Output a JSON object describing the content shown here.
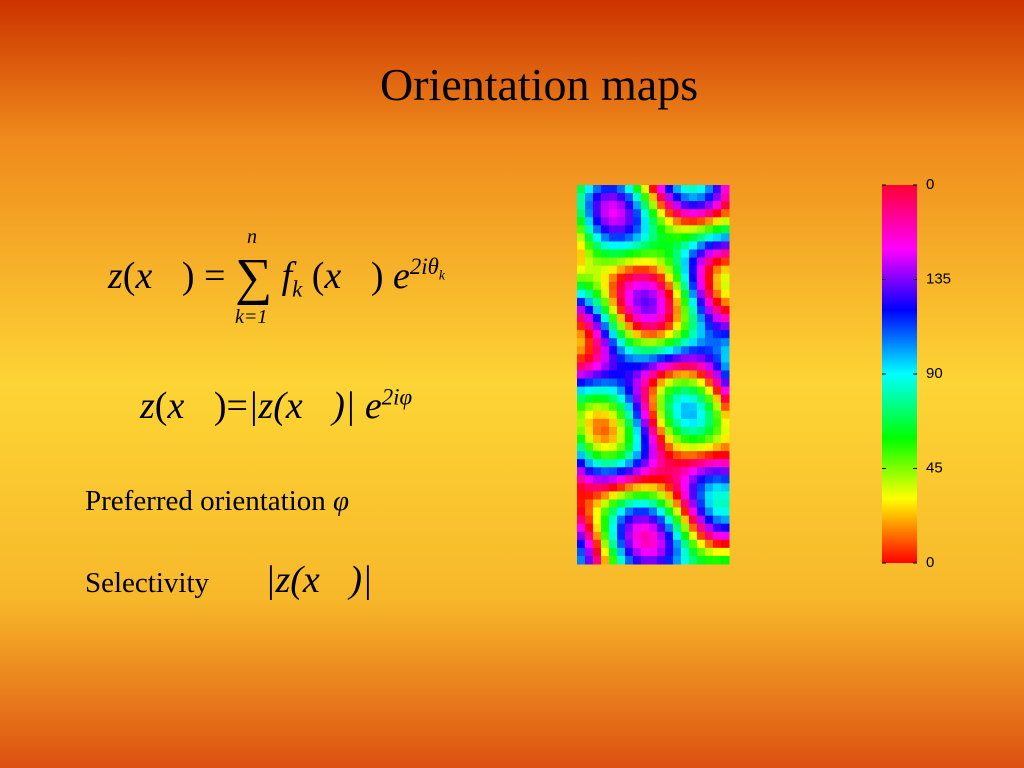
{
  "title": "Orientation maps",
  "equation1": {
    "lhs": "z",
    "arg": "x⃗",
    "eq": "=",
    "sum": "∑",
    "sum_top": "n",
    "sum_bottom": "k=1",
    "f": "f",
    "f_sub": "k",
    "e": "e",
    "exp": "2iθ",
    "exp_sub": "k"
  },
  "equation2": {
    "lhs": "z",
    "arg": "x⃗",
    "eq": "=",
    "abs": "|z(x⃗)|",
    "e": "e",
    "exp": "2iφ"
  },
  "preferred": {
    "label": "Preferred orientation",
    "symbol": "φ"
  },
  "selectivity": {
    "label": "Selectivity",
    "formula": "|z(x⃗)|"
  },
  "colorbar": {
    "lim": [
      0,
      180
    ],
    "ticks": [
      {
        "value": 180,
        "label": "0"
      },
      135,
      90,
      45,
      0
    ]
  }
}
